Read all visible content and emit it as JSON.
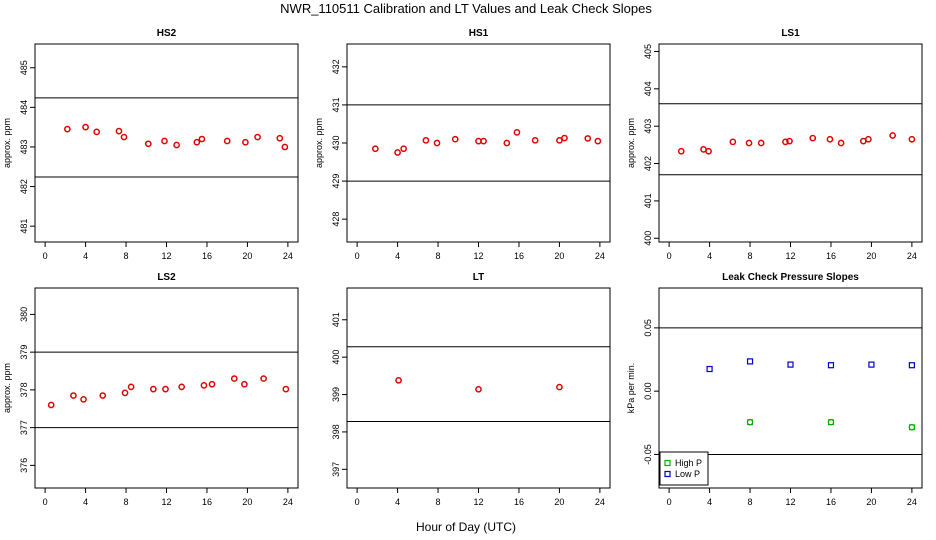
{
  "figure_title": "NWR_110511  Calibration and LT Values and Leak Check Slopes",
  "x_axis_label": "Hour of Day (UTC)",
  "colors": {
    "red": "#e00000",
    "green": "#00b000",
    "blue": "#0000c8",
    "frame": "#000000"
  },
  "chart_data": [
    {
      "id": "hs2",
      "type": "scatter",
      "title": "HS2",
      "ylabel": "approx. ppm",
      "xlim": [
        -1,
        25
      ],
      "ylim": [
        480.6,
        485.6
      ],
      "xticks": [
        0,
        4,
        8,
        12,
        16,
        20,
        24
      ],
      "yticks": [
        481,
        482,
        483,
        484,
        485
      ],
      "hlines": [
        482.24,
        484.24
      ],
      "series": [
        {
          "name": "HS2",
          "color": "#e00000",
          "marker": "circle",
          "x": [
            2.2,
            4.0,
            5.1,
            7.3,
            7.8,
            10.2,
            11.8,
            13.0,
            15.0,
            15.5,
            18.0,
            19.8,
            21.0,
            23.2,
            23.7
          ],
          "y": [
            483.45,
            483.5,
            483.38,
            483.4,
            483.25,
            483.08,
            483.15,
            483.05,
            483.12,
            483.2,
            483.15,
            483.12,
            483.25,
            483.22,
            483.0
          ]
        }
      ]
    },
    {
      "id": "hs1",
      "type": "scatter",
      "title": "HS1",
      "ylabel": "approx. ppm",
      "xlim": [
        -1,
        25
      ],
      "ylim": [
        427.4,
        432.6
      ],
      "xticks": [
        0,
        4,
        8,
        12,
        16,
        20,
        24
      ],
      "yticks": [
        428,
        429,
        430,
        431,
        432
      ],
      "hlines": [
        429.0,
        431.0
      ],
      "series": [
        {
          "name": "HS1",
          "color": "#e00000",
          "marker": "circle",
          "x": [
            1.8,
            4.0,
            4.6,
            6.8,
            7.9,
            9.7,
            12.0,
            12.5,
            14.8,
            15.8,
            17.6,
            20.0,
            20.5,
            22.8,
            23.8
          ],
          "y": [
            429.85,
            429.75,
            429.85,
            430.07,
            430.0,
            430.1,
            430.05,
            430.05,
            430.0,
            430.28,
            430.07,
            430.07,
            430.13,
            430.12,
            430.05
          ]
        }
      ]
    },
    {
      "id": "ls1",
      "type": "scatter",
      "title": "LS1",
      "ylabel": "approx. ppm",
      "xlim": [
        -1,
        25
      ],
      "ylim": [
        399.9,
        405.2
      ],
      "xticks": [
        0,
        4,
        8,
        12,
        16,
        20,
        24
      ],
      "yticks": [
        400,
        401,
        402,
        403,
        404,
        405
      ],
      "hlines": [
        401.7,
        403.6
      ],
      "series": [
        {
          "name": "LS1",
          "color": "#e00000",
          "marker": "circle",
          "x": [
            1.2,
            3.4,
            3.9,
            6.3,
            7.9,
            9.1,
            11.5,
            11.9,
            14.2,
            15.9,
            17.0,
            19.2,
            19.7,
            22.1,
            24.0
          ],
          "y": [
            402.33,
            402.38,
            402.33,
            402.58,
            402.55,
            402.55,
            402.58,
            402.6,
            402.68,
            402.65,
            402.55,
            402.6,
            402.65,
            402.75,
            402.65
          ]
        }
      ]
    },
    {
      "id": "ls2",
      "type": "scatter",
      "title": "LS2",
      "ylabel": "approx. ppm",
      "xlim": [
        -1,
        25
      ],
      "ylim": [
        375.4,
        380.7
      ],
      "xticks": [
        0,
        4,
        8,
        12,
        16,
        20,
        24
      ],
      "yticks": [
        376,
        377,
        378,
        379,
        380
      ],
      "hlines": [
        377.0,
        379.0
      ],
      "series": [
        {
          "name": "LS2",
          "color": "#e00000",
          "marker": "circle",
          "x": [
            0.6,
            2.8,
            3.8,
            5.7,
            7.9,
            8.5,
            10.7,
            11.9,
            13.5,
            15.7,
            16.5,
            18.7,
            19.7,
            21.6,
            23.8
          ],
          "y": [
            377.6,
            377.85,
            377.75,
            377.85,
            377.92,
            378.08,
            378.02,
            378.02,
            378.08,
            378.12,
            378.15,
            378.3,
            378.15,
            378.3,
            378.02
          ]
        }
      ]
    },
    {
      "id": "lt",
      "type": "scatter",
      "title": "LT",
      "ylabel": "",
      "xlim": [
        -1,
        25
      ],
      "ylim": [
        396.5,
        401.85
      ],
      "xticks": [
        0,
        4,
        8,
        12,
        16,
        20,
        24
      ],
      "yticks": [
        397,
        398,
        399,
        400,
        401
      ],
      "hlines": [
        398.28,
        400.28
      ],
      "series": [
        {
          "name": "LT",
          "color": "#e00000",
          "marker": "circle",
          "x": [
            4.1,
            12.0,
            20.0
          ],
          "y": [
            399.38,
            399.14,
            399.2
          ]
        }
      ]
    },
    {
      "id": "leak",
      "type": "scatter",
      "title": "Leak Check Pressure Slopes",
      "ylabel": "kPa per min.",
      "xlim": [
        -1,
        25
      ],
      "ylim": [
        -0.0765,
        0.0815
      ],
      "xticks": [
        0,
        4,
        8,
        12,
        16,
        20,
        24
      ],
      "yticks": [
        -0.05,
        0.0,
        0.05
      ],
      "ytick_labels": [
        "-0.05",
        "0.00",
        "0.05"
      ],
      "hlines": [
        -0.05,
        0.05
      ],
      "legend": {
        "position": "bottom-left",
        "entries": [
          "High P",
          "Low P"
        ]
      },
      "series": [
        {
          "name": "High P",
          "color": "#00b000",
          "marker": "circle-square",
          "x": [
            8.0,
            16.0,
            24.0
          ],
          "y": [
            -0.0245,
            -0.0245,
            -0.0285
          ]
        },
        {
          "name": "Low P",
          "color": "#0000c8",
          "marker": "square",
          "x": [
            4.0,
            8.0,
            12.0,
            16.0,
            20.0,
            24.0
          ],
          "y": [
            0.0175,
            0.0235,
            0.021,
            0.0205,
            0.021,
            0.0205
          ]
        }
      ]
    }
  ]
}
